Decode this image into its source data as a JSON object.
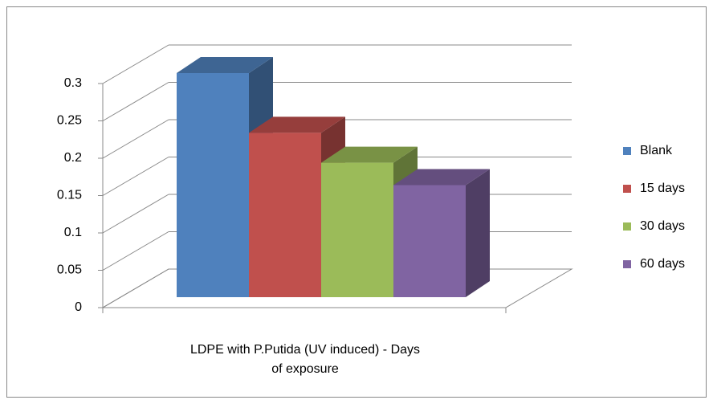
{
  "chart_data": {
    "type": "bar3d",
    "categories": [
      "LDPE with P.Putida (UV induced) - Days of exposure"
    ],
    "series": [
      {
        "name": "Blank",
        "color": "#4f81bd",
        "values": [
          0.3
        ]
      },
      {
        "name": "15 days",
        "color": "#c0504d",
        "values": [
          0.22
        ]
      },
      {
        "name": "30 days",
        "color": "#9bbb59",
        "values": [
          0.18
        ]
      },
      {
        "name": "60 days",
        "color": "#8064a2",
        "values": [
          0.15
        ]
      }
    ],
    "ylim": [
      0,
      0.3
    ],
    "yticks": [
      0,
      0.05,
      0.1,
      0.15,
      0.2,
      0.25,
      0.3
    ],
    "grid": true,
    "legend": "right"
  }
}
